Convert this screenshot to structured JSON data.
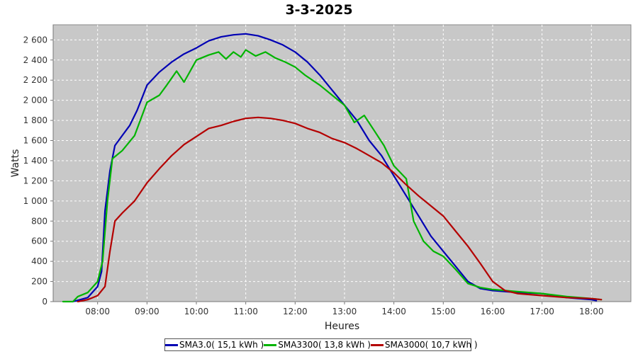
{
  "chart_data": {
    "type": "line",
    "title": "3-3-2025",
    "xlabel": "Heures",
    "ylabel": "Watts",
    "xlim": [
      7.1,
      18.8
    ],
    "ylim": [
      0,
      2750
    ],
    "y_ticks": [
      0,
      200,
      400,
      600,
      800,
      1000,
      1200,
      1400,
      1600,
      1800,
      2000,
      2200,
      2400,
      2600
    ],
    "y_tick_labels": [
      "0",
      "200",
      "400",
      "600",
      "800",
      "1 000",
      "1 200",
      "1 400",
      "1 600",
      "1 800",
      "2 000",
      "2 200",
      "2 400",
      "2 600"
    ],
    "x_ticks": [
      8,
      9,
      10,
      11,
      12,
      13,
      14,
      15,
      16,
      17,
      18
    ],
    "x_tick_labels": [
      "08:00",
      "09:00",
      "10:00",
      "11:00",
      "12:00",
      "13:00",
      "14:00",
      "15:00",
      "16:00",
      "17:00",
      "18:00"
    ],
    "grid": true,
    "legend_position": "bottom",
    "background_color": "#c8c8c8",
    "series": [
      {
        "name": "SMA3.0( 15,1 kWh )",
        "color": "#0000b4",
        "points": [
          [
            7.5,
            0
          ],
          [
            7.8,
            40
          ],
          [
            8.0,
            150
          ],
          [
            8.08,
            300
          ],
          [
            8.15,
            900
          ],
          [
            8.25,
            1300
          ],
          [
            8.35,
            1550
          ],
          [
            8.5,
            1650
          ],
          [
            8.65,
            1750
          ],
          [
            8.8,
            1900
          ],
          [
            9.0,
            2150
          ],
          [
            9.25,
            2280
          ],
          [
            9.5,
            2380
          ],
          [
            9.75,
            2460
          ],
          [
            10.0,
            2520
          ],
          [
            10.25,
            2590
          ],
          [
            10.5,
            2630
          ],
          [
            10.75,
            2650
          ],
          [
            11.0,
            2660
          ],
          [
            11.25,
            2640
          ],
          [
            11.5,
            2600
          ],
          [
            11.75,
            2550
          ],
          [
            12.0,
            2480
          ],
          [
            12.25,
            2380
          ],
          [
            12.5,
            2250
          ],
          [
            12.75,
            2100
          ],
          [
            13.0,
            1950
          ],
          [
            13.25,
            1800
          ],
          [
            13.5,
            1600
          ],
          [
            13.75,
            1450
          ],
          [
            14.0,
            1250
          ],
          [
            14.25,
            1050
          ],
          [
            14.5,
            850
          ],
          [
            14.75,
            650
          ],
          [
            15.0,
            500
          ],
          [
            15.25,
            350
          ],
          [
            15.5,
            200
          ],
          [
            15.75,
            130
          ],
          [
            16.0,
            110
          ],
          [
            16.5,
            90
          ],
          [
            17.0,
            80
          ],
          [
            17.5,
            40
          ],
          [
            18.0,
            20
          ],
          [
            18.1,
            10
          ]
        ]
      },
      {
        "name": "SMA3300( 13,8 kWh )",
        "color": "#00b400",
        "points": [
          [
            7.3,
            0
          ],
          [
            7.5,
            0
          ],
          [
            7.6,
            50
          ],
          [
            7.8,
            90
          ],
          [
            8.0,
            200
          ],
          [
            8.1,
            400
          ],
          [
            8.2,
            1000
          ],
          [
            8.3,
            1420
          ],
          [
            8.5,
            1500
          ],
          [
            8.75,
            1650
          ],
          [
            9.0,
            1980
          ],
          [
            9.25,
            2050
          ],
          [
            9.4,
            2150
          ],
          [
            9.6,
            2290
          ],
          [
            9.75,
            2180
          ],
          [
            10.0,
            2400
          ],
          [
            10.25,
            2450
          ],
          [
            10.45,
            2480
          ],
          [
            10.6,
            2410
          ],
          [
            10.75,
            2480
          ],
          [
            10.9,
            2430
          ],
          [
            11.0,
            2500
          ],
          [
            11.2,
            2440
          ],
          [
            11.4,
            2480
          ],
          [
            11.6,
            2420
          ],
          [
            11.8,
            2380
          ],
          [
            12.0,
            2330
          ],
          [
            12.2,
            2250
          ],
          [
            12.5,
            2150
          ],
          [
            12.75,
            2050
          ],
          [
            13.0,
            1950
          ],
          [
            13.2,
            1780
          ],
          [
            13.4,
            1850
          ],
          [
            13.6,
            1700
          ],
          [
            13.8,
            1550
          ],
          [
            14.0,
            1350
          ],
          [
            14.25,
            1220
          ],
          [
            14.4,
            800
          ],
          [
            14.6,
            600
          ],
          [
            14.8,
            500
          ],
          [
            15.0,
            450
          ],
          [
            15.25,
            320
          ],
          [
            15.5,
            180
          ],
          [
            15.75,
            140
          ],
          [
            16.0,
            120
          ],
          [
            16.5,
            100
          ],
          [
            17.0,
            80
          ],
          [
            17.5,
            50
          ],
          [
            18.0,
            30
          ],
          [
            18.2,
            20
          ]
        ]
      },
      {
        "name": "SMA3000( 10,7 kWh )",
        "color": "#b40000",
        "points": [
          [
            7.6,
            0
          ],
          [
            7.8,
            20
          ],
          [
            8.0,
            60
          ],
          [
            8.15,
            150
          ],
          [
            8.25,
            500
          ],
          [
            8.35,
            800
          ],
          [
            8.5,
            880
          ],
          [
            8.75,
            1000
          ],
          [
            9.0,
            1180
          ],
          [
            9.25,
            1320
          ],
          [
            9.5,
            1450
          ],
          [
            9.75,
            1560
          ],
          [
            10.0,
            1640
          ],
          [
            10.25,
            1720
          ],
          [
            10.5,
            1750
          ],
          [
            10.75,
            1790
          ],
          [
            11.0,
            1820
          ],
          [
            11.25,
            1830
          ],
          [
            11.5,
            1820
          ],
          [
            11.75,
            1800
          ],
          [
            12.0,
            1770
          ],
          [
            12.25,
            1720
          ],
          [
            12.5,
            1680
          ],
          [
            12.75,
            1620
          ],
          [
            13.0,
            1580
          ],
          [
            13.25,
            1520
          ],
          [
            13.5,
            1450
          ],
          [
            13.75,
            1380
          ],
          [
            14.0,
            1280
          ],
          [
            14.25,
            1160
          ],
          [
            14.5,
            1050
          ],
          [
            14.75,
            950
          ],
          [
            15.0,
            850
          ],
          [
            15.25,
            700
          ],
          [
            15.5,
            550
          ],
          [
            15.75,
            380
          ],
          [
            16.0,
            200
          ],
          [
            16.25,
            110
          ],
          [
            16.5,
            80
          ],
          [
            17.0,
            60
          ],
          [
            17.5,
            40
          ],
          [
            18.0,
            30
          ],
          [
            18.2,
            20
          ]
        ]
      }
    ]
  }
}
